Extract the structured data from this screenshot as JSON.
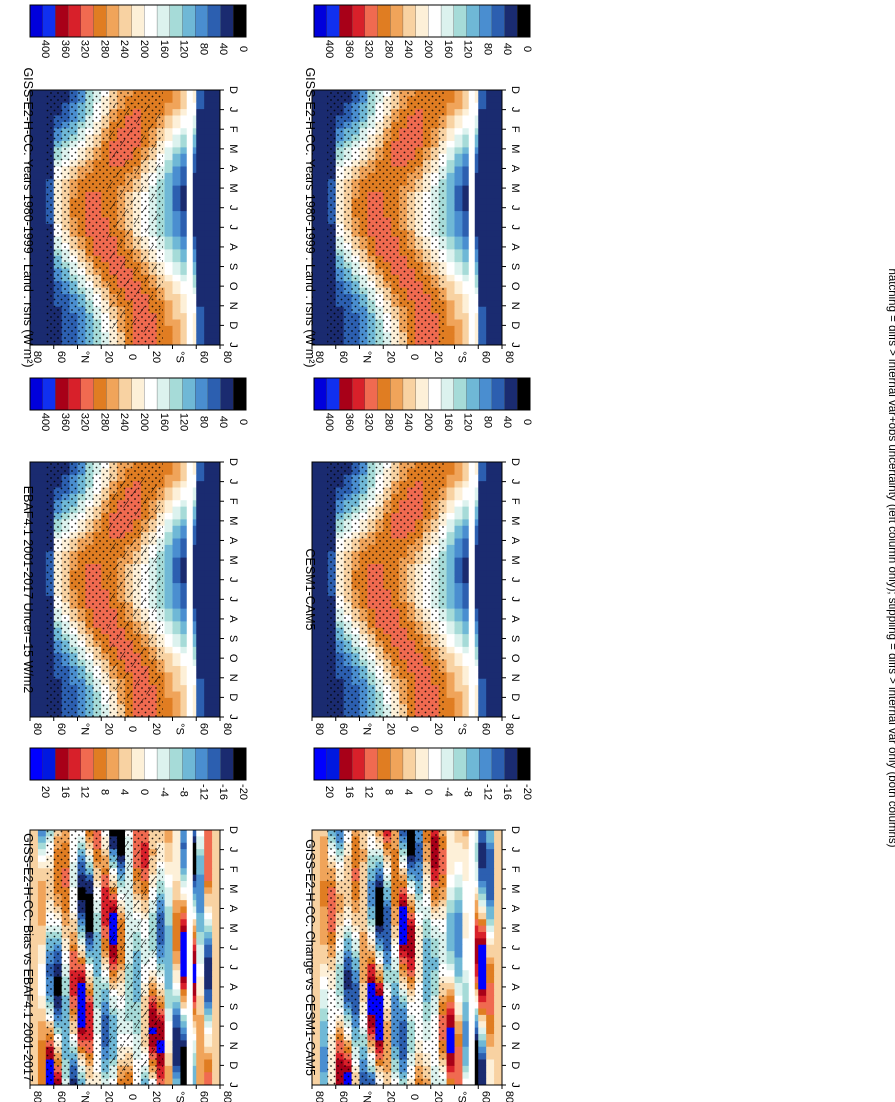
{
  "footnote": "hatching = diffs > internal var+obs uncertainty (left column only); stippling = diffs > internal var only (both columns)",
  "chart_data": [
    {
      "id": "p11",
      "type": "heatmap",
      "title": "GISS-E2-H-CC: Years 1980-1999 : Land : rsns (W m²)",
      "pattern": "clim",
      "hatch": true,
      "colorbar": "abs"
    },
    {
      "id": "p12",
      "type": "heatmap",
      "title": "GISS-E2-H-CC: Years 1980-1999 : Land : rsns (W m²)",
      "pattern": "clim",
      "hatch": false,
      "colorbar": "abs"
    },
    {
      "id": "p21",
      "type": "heatmap",
      "title": "EBAF4.1 2001-2017 Uncer=15 W/m2",
      "pattern": "clim",
      "hatch": true,
      "colorbar": "abs"
    },
    {
      "id": "p22",
      "type": "heatmap",
      "title": "CESM1-CAM5",
      "pattern": "clim",
      "hatch": false,
      "colorbar": "abs"
    },
    {
      "id": "p31",
      "type": "heatmap",
      "title": "GISS-E2-H-CC: Bias vs EBAF4.1 2001-2017",
      "pattern": "diff",
      "hatch": true,
      "colorbar": "diff"
    },
    {
      "id": "p32",
      "type": "heatmap",
      "title": "GISS-E2-H-CC: Change vs CESM1-CAM5",
      "pattern": "diff",
      "hatch": false,
      "colorbar": "diff"
    }
  ],
  "axes": {
    "months": [
      "D",
      "J",
      "F",
      "M",
      "A",
      "M",
      "J",
      "J",
      "A",
      "S",
      "O",
      "N",
      "D",
      "J"
    ],
    "lat_ticks": [
      "80",
      "60",
      "°N",
      "20",
      "0",
      "20",
      "°S",
      "60",
      "80"
    ],
    "lat_values": [
      80,
      60,
      40,
      20,
      0,
      -20,
      -40,
      -60,
      -80
    ]
  },
  "colorbars": {
    "abs": {
      "labels": [
        "400",
        "360",
        "320",
        "280",
        "240",
        "200",
        "160",
        "120",
        "80",
        "40",
        "0"
      ],
      "colors": [
        "#0000dc",
        "#1030f0",
        "#a80018",
        "#d8202a",
        "#f06a50",
        "#e07d22",
        "#f0a45a",
        "#f8d2a2",
        "#fdf0d8",
        "#ffffff",
        "#dcf2ee",
        "#a6dbd8",
        "#6fb8d6",
        "#4a8ed0",
        "#2c5fb0",
        "#1a2b70",
        "#000000"
      ]
    },
    "diff": {
      "labels": [
        "20",
        "16",
        "12",
        "8",
        "4",
        "0",
        "-4",
        "-8",
        "-12",
        "-16",
        "-20"
      ],
      "colors": [
        "#0000ff",
        "#0018e0",
        "#a80018",
        "#d8202a",
        "#f06a50",
        "#e07d22",
        "#f0a45a",
        "#f8d2a2",
        "#fdf0d8",
        "#ffffff",
        "#dcf2ee",
        "#a6dbd8",
        "#6fb8d6",
        "#4a8ed0",
        "#2c5fb0",
        "#1a2b70",
        "#000000"
      ]
    }
  }
}
